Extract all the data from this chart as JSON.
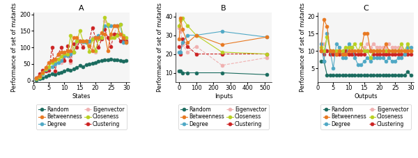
{
  "panel_A": {
    "title": "A",
    "xlabel": "States",
    "ylabel": "Performance of set of mutants",
    "xlim": [
      0,
      31
    ],
    "ylim": [
      -5,
      205
    ],
    "xticks": [
      0,
      5,
      10,
      15,
      20,
      25,
      30
    ],
    "yticks": [
      0,
      50,
      100,
      150,
      200
    ],
    "series": {
      "Random": {
        "x": [
          1,
          2,
          3,
          4,
          5,
          6,
          7,
          8,
          9,
          10,
          11,
          12,
          13,
          14,
          15,
          16,
          17,
          18,
          19,
          20,
          21,
          22,
          23,
          24,
          25,
          26,
          27,
          28,
          29,
          30
        ],
        "y": [
          2,
          5,
          8,
          12,
          16,
          20,
          18,
          22,
          25,
          28,
          32,
          30,
          35,
          40,
          45,
          42,
          48,
          50,
          52,
          55,
          58,
          60,
          62,
          63,
          65,
          63,
          62,
          60,
          58,
          60
        ],
        "color": "#1a6b5e",
        "marker": "o",
        "linestyle": "-",
        "zorder": 2
      },
      "Degree": {
        "x": [
          1,
          2,
          3,
          4,
          5,
          6,
          7,
          8,
          9,
          10,
          11,
          12,
          13,
          14,
          15,
          16,
          17,
          18,
          19,
          20,
          21,
          22,
          23,
          24,
          25,
          26,
          27,
          28,
          29,
          30
        ],
        "y": [
          5,
          10,
          20,
          32,
          40,
          42,
          50,
          55,
          60,
          75,
          75,
          80,
          85,
          120,
          120,
          118,
          115,
          120,
          125,
          130,
          135,
          130,
          165,
          165,
          165,
          165,
          165,
          170,
          115,
          115
        ],
        "color": "#4fa8c5",
        "marker": "o",
        "linestyle": "-",
        "zorder": 3
      },
      "Closeness": {
        "x": [
          1,
          2,
          3,
          4,
          5,
          6,
          7,
          8,
          9,
          10,
          11,
          12,
          13,
          14,
          15,
          16,
          17,
          18,
          19,
          20,
          21,
          22,
          23,
          24,
          25,
          26,
          27,
          28,
          29,
          30
        ],
        "y": [
          5,
          10,
          22,
          35,
          42,
          55,
          60,
          65,
          72,
          82,
          80,
          135,
          85,
          120,
          150,
          120,
          120,
          88,
          125,
          90,
          125,
          130,
          190,
          170,
          130,
          130,
          135,
          170,
          135,
          130
        ],
        "color": "#b8d020",
        "marker": "o",
        "linestyle": "-",
        "zorder": 3
      },
      "Betweenness": {
        "x": [
          1,
          2,
          3,
          4,
          5,
          6,
          7,
          8,
          9,
          10,
          11,
          12,
          13,
          14,
          15,
          16,
          17,
          18,
          19,
          20,
          21,
          22,
          23,
          24,
          25,
          26,
          27,
          28,
          29,
          30
        ],
        "y": [
          8,
          15,
          25,
          40,
          55,
          60,
          65,
          80,
          85,
          85,
          90,
          90,
          130,
          130,
          120,
          120,
          120,
          105,
          90,
          130,
          130,
          145,
          140,
          90,
          140,
          165,
          165,
          140,
          130,
          115
        ],
        "color": "#e87820",
        "marker": "o",
        "linestyle": "-",
        "zorder": 3
      },
      "Eigenvector": {
        "x": [
          1,
          2,
          3,
          4,
          5,
          6,
          7,
          8,
          9,
          10,
          11,
          12,
          13,
          14,
          15,
          16,
          17,
          18,
          19,
          20,
          21,
          22,
          23,
          24,
          25,
          26,
          27,
          28,
          29,
          30
        ],
        "y": [
          5,
          12,
          25,
          40,
          55,
          60,
          65,
          80,
          55,
          80,
          75,
          55,
          85,
          110,
          120,
          118,
          120,
          110,
          130,
          85,
          130,
          130,
          180,
          168,
          135,
          140,
          165,
          135,
          120,
          125
        ],
        "color": "#f0b0b0",
        "marker": "o",
        "linestyle": "--",
        "zorder": 2
      },
      "Clustering": {
        "x": [
          1,
          2,
          3,
          4,
          5,
          6,
          7,
          8,
          9,
          10,
          11,
          12,
          13,
          14,
          15,
          16,
          17,
          18,
          19,
          20,
          21,
          22,
          23,
          24,
          25,
          26,
          27,
          28,
          29,
          30
        ],
        "y": [
          8,
          20,
          30,
          28,
          30,
          100,
          28,
          80,
          100,
          60,
          105,
          60,
          110,
          100,
          120,
          100,
          120,
          120,
          160,
          130,
          100,
          125,
          155,
          130,
          102,
          140,
          138,
          120,
          122,
          120
        ],
        "color": "#cc2222",
        "marker": "o",
        "linestyle": "--",
        "zorder": 2
      }
    }
  },
  "panel_B": {
    "title": "B",
    "xlabel": "Inputs",
    "ylabel": "Performance of set of mutants",
    "xlim": [
      -20,
      540
    ],
    "ylim": [
      5,
      42
    ],
    "xticks": [
      0,
      100,
      200,
      300,
      400,
      500
    ],
    "yticks": [
      10,
      20,
      30,
      40
    ],
    "series": {
      "Random": {
        "x": [
          1,
          10,
          20,
          50,
          100,
          250,
          510
        ],
        "y": [
          11,
          11,
          10,
          10,
          10,
          10,
          9
        ],
        "color": "#1a6b5e",
        "marker": "o",
        "linestyle": "-",
        "zorder": 3
      },
      "Degree": {
        "x": [
          1,
          10,
          20,
          50,
          100,
          250,
          510
        ],
        "y": [
          21,
          21,
          26,
          30,
          30,
          32,
          29
        ],
        "color": "#4fa8c5",
        "marker": "o",
        "linestyle": "-",
        "zorder": 3
      },
      "Closeness": {
        "x": [
          1,
          10,
          20,
          50,
          100,
          250,
          510
        ],
        "y": [
          35,
          38,
          39,
          35,
          30,
          21,
          20
        ],
        "color": "#b8d020",
        "marker": "o",
        "linestyle": "-",
        "zorder": 3
      },
      "Betweenness": {
        "x": [
          1,
          10,
          20,
          50,
          100,
          250,
          510
        ],
        "y": [
          28,
          39,
          33,
          26,
          30,
          25,
          29
        ],
        "color": "#e87820",
        "marker": "o",
        "linestyle": "-",
        "zorder": 3
      },
      "Eigenvector": {
        "x": [
          1,
          10,
          20,
          50,
          100,
          250,
          510
        ],
        "y": [
          34,
          32,
          25,
          21,
          24,
          14,
          18
        ],
        "color": "#f0b0b0",
        "marker": "o",
        "linestyle": "--",
        "zorder": 2
      },
      "Clustering": {
        "x": [
          1,
          10,
          20,
          50,
          100,
          250,
          510
        ],
        "y": [
          24,
          20,
          28,
          24,
          20,
          20,
          20
        ],
        "color": "#cc2222",
        "marker": "o",
        "linestyle": "--",
        "zorder": 2
      }
    }
  },
  "panel_C": {
    "title": "C",
    "xlabel": "Outputs",
    "ylabel": "Performance of set of mutants",
    "xlim": [
      0,
      31
    ],
    "ylim": [
      1,
      21
    ],
    "xticks": [
      0,
      5,
      10,
      15,
      20,
      25,
      30
    ],
    "yticks": [
      5,
      10,
      15,
      20
    ],
    "series": {
      "Random": {
        "x": [
          1,
          2,
          3,
          4,
          5,
          6,
          7,
          8,
          9,
          10,
          11,
          12,
          13,
          14,
          15,
          16,
          17,
          18,
          19,
          20,
          21,
          22,
          23,
          24,
          25,
          26,
          27,
          28,
          29,
          30
        ],
        "y": [
          7,
          7,
          3,
          3,
          3,
          3,
          3,
          3,
          3,
          3,
          3,
          3,
          3,
          3,
          3,
          3,
          3,
          3,
          3,
          3,
          3,
          3,
          3,
          3,
          3,
          3,
          3,
          3,
          4,
          3
        ],
        "color": "#1a6b5e",
        "marker": "o",
        "linestyle": "-",
        "zorder": 3
      },
      "Degree": {
        "x": [
          1,
          2,
          3,
          4,
          5,
          6,
          7,
          8,
          9,
          10,
          11,
          12,
          13,
          14,
          15,
          16,
          17,
          18,
          19,
          20,
          21,
          22,
          23,
          24,
          25,
          26,
          27,
          28,
          29,
          30
        ],
        "y": [
          12,
          7,
          15,
          10,
          5,
          12,
          11,
          8,
          8,
          12,
          11,
          8,
          6,
          6,
          7,
          8,
          7,
          8,
          8,
          8,
          8,
          7,
          8,
          7,
          7,
          8,
          8,
          9,
          11,
          11
        ],
        "color": "#4fa8c5",
        "marker": "o",
        "linestyle": "-",
        "zorder": 3
      },
      "Closeness": {
        "x": [
          1,
          2,
          3,
          4,
          5,
          6,
          7,
          8,
          9,
          10,
          11,
          12,
          13,
          14,
          15,
          16,
          17,
          18,
          19,
          20,
          21,
          22,
          23,
          24,
          25,
          26,
          27,
          28,
          29,
          30
        ],
        "y": [
          11,
          10,
          14,
          10,
          10,
          10,
          10,
          10,
          11,
          11,
          11,
          12,
          10,
          12,
          10,
          10,
          8,
          10,
          10,
          10,
          10,
          10,
          10,
          10,
          10,
          10,
          12,
          10,
          12,
          10
        ],
        "color": "#b8d020",
        "marker": "o",
        "linestyle": "-",
        "zorder": 3
      },
      "Betweenness": {
        "x": [
          1,
          2,
          3,
          4,
          5,
          6,
          7,
          8,
          9,
          10,
          11,
          12,
          13,
          14,
          15,
          16,
          17,
          18,
          19,
          20,
          21,
          22,
          23,
          24,
          25,
          26,
          27,
          28,
          29,
          30
        ],
        "y": [
          10,
          19,
          17,
          10,
          10,
          9,
          10,
          9,
          9,
          10,
          10,
          10,
          10,
          10,
          15,
          15,
          10,
          10,
          10,
          10,
          10,
          12,
          10,
          10,
          10,
          10,
          10,
          10,
          10,
          10
        ],
        "color": "#e87820",
        "marker": "o",
        "linestyle": "-",
        "zorder": 3
      },
      "Eigenvector": {
        "x": [
          1,
          2,
          3,
          4,
          5,
          6,
          7,
          8,
          9,
          10,
          11,
          12,
          13,
          14,
          15,
          16,
          17,
          18,
          19,
          20,
          21,
          22,
          23,
          24,
          25,
          26,
          27,
          28,
          29,
          30
        ],
        "y": [
          10,
          12,
          10,
          10,
          9,
          9,
          9,
          9,
          9,
          9,
          9,
          9,
          9,
          9,
          11,
          12,
          11,
          12,
          11,
          11,
          11,
          11,
          12,
          11,
          11,
          11,
          11,
          10,
          10,
          10
        ],
        "color": "#f0b0b0",
        "marker": "o",
        "linestyle": "--",
        "zorder": 2
      },
      "Clustering": {
        "x": [
          1,
          2,
          3,
          4,
          5,
          6,
          7,
          8,
          9,
          10,
          11,
          12,
          13,
          14,
          15,
          16,
          17,
          18,
          19,
          20,
          21,
          22,
          23,
          24,
          25,
          26,
          27,
          28,
          29,
          30
        ],
        "y": [
          10,
          9,
          10,
          9,
          9,
          9,
          9,
          9,
          10,
          9,
          9,
          9,
          9,
          9,
          9,
          10,
          10,
          9,
          9,
          9,
          9,
          9,
          9,
          9,
          9,
          9,
          9,
          9,
          9,
          9
        ],
        "color": "#cc2222",
        "marker": "o",
        "linestyle": "--",
        "zorder": 2
      }
    }
  },
  "legend_order": [
    "Random",
    "Betweenness",
    "Degree",
    "Eigenvector",
    "Closeness",
    "Clustering"
  ],
  "marker_size": 3.5,
  "linewidth": 0.8,
  "fontsize_title": 8,
  "fontsize_axis": 6,
  "fontsize_tick": 6,
  "fontsize_legend": 5.5,
  "bg_color": "#f5f5f5"
}
